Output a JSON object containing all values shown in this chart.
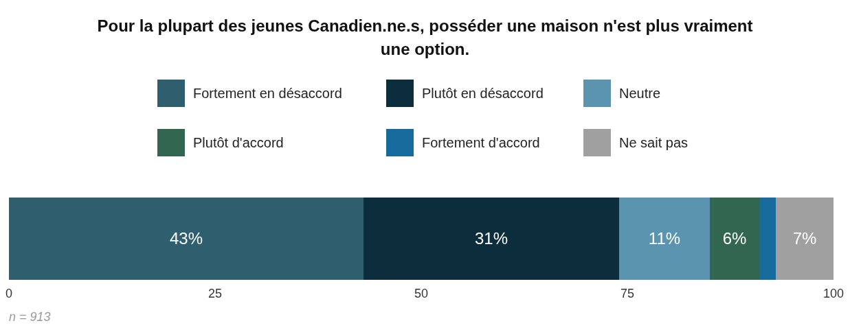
{
  "chart_data": {
    "type": "bar",
    "orientation": "horizontal",
    "stacked": true,
    "title": "Pour la plupart des jeunes Canadien.ne.s, posséder une maison n'est plus vraiment une option.",
    "categories": [
      null
    ],
    "series": [
      {
        "name": "Fortement en désaccord",
        "color": "#2f5f6e",
        "values": [
          43
        ],
        "value_labels": [
          "43%"
        ]
      },
      {
        "name": "Plutôt en désaccord",
        "color": "#0b2d3c",
        "values": [
          31
        ],
        "value_labels": [
          "31%"
        ]
      },
      {
        "name": "Neutre",
        "color": "#5b94ae",
        "values": [
          11
        ],
        "value_labels": [
          "11%"
        ]
      },
      {
        "name": "Plutôt d'accord",
        "color": "#336650",
        "values": [
          6
        ],
        "value_labels": [
          "6%"
        ]
      },
      {
        "name": "Fortement d'accord",
        "color": "#176a9c",
        "values": [
          2
        ],
        "value_labels": [
          null
        ]
      },
      {
        "name": "Ne sait pas",
        "color": "#a0a0a0",
        "values": [
          7
        ],
        "value_labels": [
          "7%"
        ]
      }
    ],
    "xlim": [
      0,
      100
    ],
    "xticks": [
      0,
      25,
      50,
      75,
      100
    ],
    "tick_labels": "x",
    "grid": false,
    "legend": "top",
    "annotations": [
      "n = 913"
    ]
  }
}
